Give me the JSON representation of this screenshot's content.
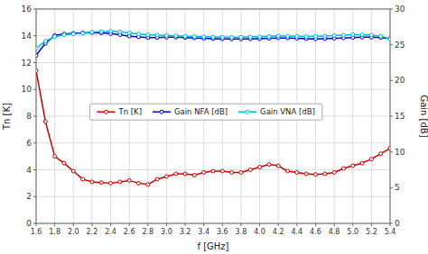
{
  "chart_data": {
    "type": "line",
    "x_label": "f [GHz]",
    "y_label": "Tn [K]",
    "y2_label": "Gain [dB]",
    "x": [
      1.6,
      1.7,
      1.8,
      1.9,
      2.0,
      2.1,
      2.2,
      2.3,
      2.4,
      2.5,
      2.6,
      2.7,
      2.8,
      2.9,
      3.0,
      3.1,
      3.2,
      3.3,
      3.4,
      3.5,
      3.6,
      3.7,
      3.8,
      3.9,
      4.0,
      4.1,
      4.2,
      4.3,
      4.4,
      4.5,
      4.6,
      4.7,
      4.8,
      4.9,
      5.0,
      5.1,
      5.2,
      5.3,
      5.4
    ],
    "series": [
      {
        "name": "Tn [K]",
        "color": "#cc0000",
        "marker": "circle",
        "values": [
          11.4,
          7.6,
          5.0,
          4.5,
          3.9,
          3.3,
          3.1,
          3.05,
          3.0,
          3.1,
          3.2,
          3.0,
          2.9,
          3.3,
          3.5,
          3.7,
          3.7,
          3.6,
          3.8,
          3.9,
          3.9,
          3.8,
          3.8,
          4.0,
          4.2,
          4.4,
          4.3,
          3.9,
          3.8,
          3.7,
          3.65,
          3.7,
          3.8,
          4.1,
          4.3,
          4.5,
          4.8,
          5.2,
          5.6
        ]
      },
      {
        "name": "Gain NFA [dB]",
        "color": "#0000cc",
        "marker": "circle",
        "axis": "y2",
        "values": [
          23.5,
          25.2,
          26.3,
          26.5,
          26.6,
          26.65,
          26.7,
          26.65,
          26.55,
          26.4,
          26.2,
          26.1,
          26.0,
          26.0,
          26.05,
          26.05,
          26.0,
          25.95,
          25.9,
          25.85,
          25.82,
          25.8,
          25.8,
          25.82,
          25.85,
          25.9,
          25.95,
          25.95,
          25.9,
          25.85,
          25.82,
          25.85,
          25.9,
          25.95,
          26.0,
          26.05,
          26.05,
          26.0,
          25.85
        ]
      },
      {
        "name": "Gain VNA [dB]",
        "color": "#00bbdd",
        "marker": "circle",
        "axis": "y2",
        "values": [
          24.5,
          25.5,
          26.1,
          26.4,
          26.5,
          26.6,
          26.75,
          26.85,
          26.9,
          26.8,
          26.65,
          26.5,
          26.4,
          26.35,
          26.3,
          26.25,
          26.2,
          26.15,
          26.12,
          26.08,
          26.05,
          26.03,
          26.05,
          26.08,
          26.12,
          26.18,
          26.22,
          26.22,
          26.18,
          26.15,
          26.18,
          26.22,
          26.28,
          26.35,
          26.42,
          26.4,
          26.35,
          26.2,
          25.8
        ]
      }
    ],
    "xlim": [
      1.6,
      5.4
    ],
    "xticks": [
      1.6,
      1.8,
      {
        "value": 2.0,
        "label": "2.0"
      },
      2.2,
      2.4,
      2.6,
      2.8,
      {
        "value": 3.0,
        "label": "3.0"
      },
      3.2,
      3.4,
      3.6,
      3.8,
      {
        "value": 4.0,
        "label": "4.0"
      },
      4.2,
      4.4,
      4.6,
      4.8,
      {
        "value": 5.0,
        "label": "5.0"
      },
      5.2,
      5.4
    ],
    "ylim": [
      0,
      16
    ],
    "yticks": [
      0,
      2,
      4,
      6,
      8,
      10,
      12,
      14,
      16
    ],
    "y2lim": [
      0,
      30
    ],
    "y2ticks": [
      0,
      5,
      10,
      15,
      20,
      25,
      30
    ],
    "grid": true,
    "legend": "center"
  }
}
